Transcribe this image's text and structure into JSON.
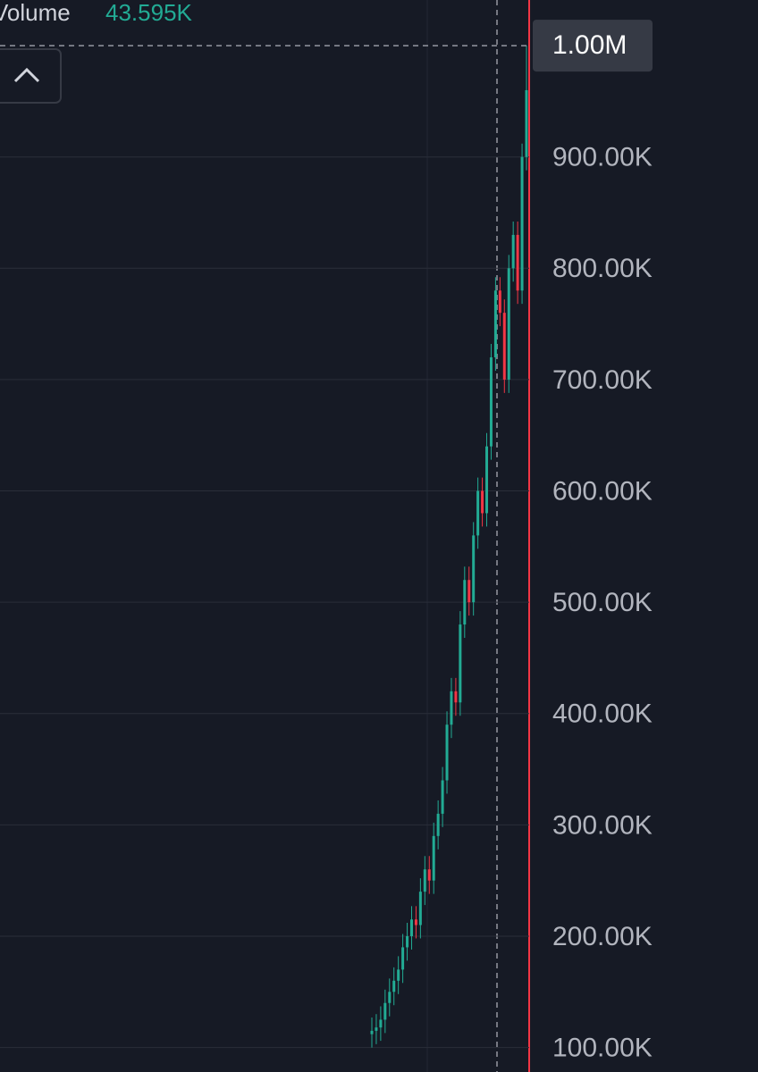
{
  "chart_data": {
    "type": "candlestick",
    "legend_label": "Volume",
    "legend_value": "43.595K",
    "up_color": "#22ab94",
    "down_color": "#f23645",
    "series": [
      {
        "open": [
          112000,
          115000,
          118000,
          125000,
          140000,
          150000,
          160000,
          170000,
          190000,
          200000,
          215000,
          210000,
          240000,
          260000,
          250000,
          290000,
          310000,
          340000,
          390000,
          420000,
          410000,
          480000,
          520000,
          500000,
          560000,
          600000,
          580000,
          640000,
          720000,
          780000,
          760000,
          700000,
          800000,
          830000,
          780000,
          900000
        ],
        "high": [
          127000,
          130000,
          137000,
          152000,
          162000,
          172000,
          182000,
          202000,
          212000,
          227000,
          227000,
          252000,
          272000,
          272000,
          302000,
          322000,
          352000,
          402000,
          432000,
          432000,
          492000,
          532000,
          532000,
          572000,
          612000,
          612000,
          652000,
          732000,
          792000,
          792000,
          772000,
          812000,
          842000,
          842000,
          912000,
          1000000
        ],
        "low": [
          100000,
          103000,
          106000,
          113000,
          128000,
          138000,
          148000,
          158000,
          178000,
          188000,
          198000,
          198000,
          228000,
          238000,
          238000,
          278000,
          298000,
          328000,
          378000,
          398000,
          398000,
          468000,
          488000,
          488000,
          548000,
          568000,
          568000,
          628000,
          708000,
          748000,
          688000,
          688000,
          788000,
          768000,
          768000,
          888000
        ],
        "close": [
          115000,
          118000,
          125000,
          140000,
          150000,
          160000,
          170000,
          190000,
          200000,
          215000,
          210000,
          240000,
          260000,
          250000,
          290000,
          310000,
          340000,
          390000,
          420000,
          410000,
          480000,
          520000,
          500000,
          560000,
          600000,
          580000,
          640000,
          720000,
          780000,
          760000,
          700000,
          800000,
          830000,
          780000,
          900000,
          960000
        ]
      }
    ],
    "ylim": [
      78000,
      1041000
    ],
    "yticks": [
      {
        "value": 100000,
        "label": "100.00K"
      },
      {
        "value": 200000,
        "label": "200.00K"
      },
      {
        "value": 300000,
        "label": "300.00K"
      },
      {
        "value": 400000,
        "label": "400.00K"
      },
      {
        "value": 500000,
        "label": "500.00K"
      },
      {
        "value": 600000,
        "label": "600.00K"
      },
      {
        "value": 700000,
        "label": "700.00K"
      },
      {
        "value": 800000,
        "label": "800.00K"
      },
      {
        "value": 900000,
        "label": "900.00K"
      }
    ],
    "crosshair": {
      "value": 1000000,
      "label": "1.00M"
    },
    "grid": true
  }
}
